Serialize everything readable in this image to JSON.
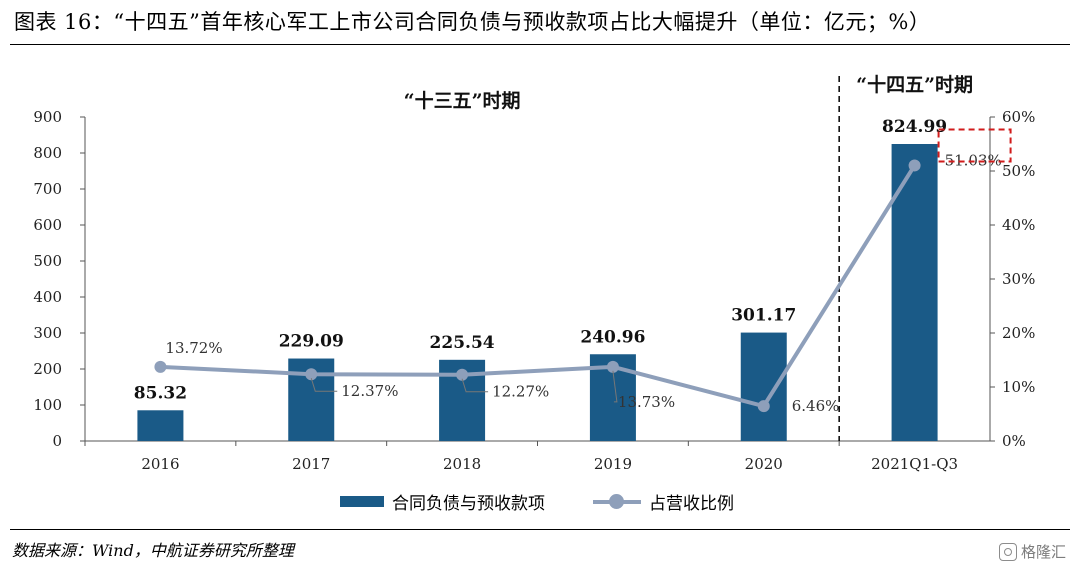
{
  "header": {
    "title": "图表 16：“十四五”首年核心军工上市公司合同负债与预收款项占比大幅提升（单位：亿元；%）"
  },
  "footer": {
    "source": "数据来源：Wind，中航证券研究所整理",
    "watermark": "格隆汇"
  },
  "colors": {
    "bar": "#1a5a87",
    "line": "#8e9fba",
    "highlight": "#d11c1c"
  },
  "chart_data": {
    "type": "bar",
    "categories": [
      "2016",
      "2017",
      "2018",
      "2019",
      "2020",
      "2021Q1-Q3"
    ],
    "series": [
      {
        "name": "合同负债与预收款项",
        "type": "bar",
        "axis": "left",
        "values": [
          85.32,
          229.09,
          225.54,
          240.96,
          301.17,
          824.99
        ],
        "labels": [
          "85.32",
          "229.09",
          "225.54",
          "240.96",
          "301.17",
          "824.99"
        ]
      },
      {
        "name": "占营收比例",
        "type": "line",
        "axis": "right",
        "values": [
          13.72,
          12.37,
          12.27,
          13.73,
          6.46,
          51.03
        ],
        "labels": [
          "13.72%",
          "12.37%",
          "12.27%",
          "13.73%",
          "6.46%",
          "51.03%"
        ]
      }
    ],
    "y_left": {
      "min": 0,
      "max": 900,
      "ticks": [
        "0",
        "100",
        "200",
        "300",
        "400",
        "500",
        "600",
        "700",
        "800",
        "900"
      ]
    },
    "y_right": {
      "min": 0,
      "max": 60,
      "ticks": [
        "0%",
        "10%",
        "20%",
        "30%",
        "40%",
        "50%",
        "60%"
      ]
    },
    "annotations": [
      "“十三五”时期",
      "“十四五”时期"
    ],
    "legend_position": "bottom"
  }
}
